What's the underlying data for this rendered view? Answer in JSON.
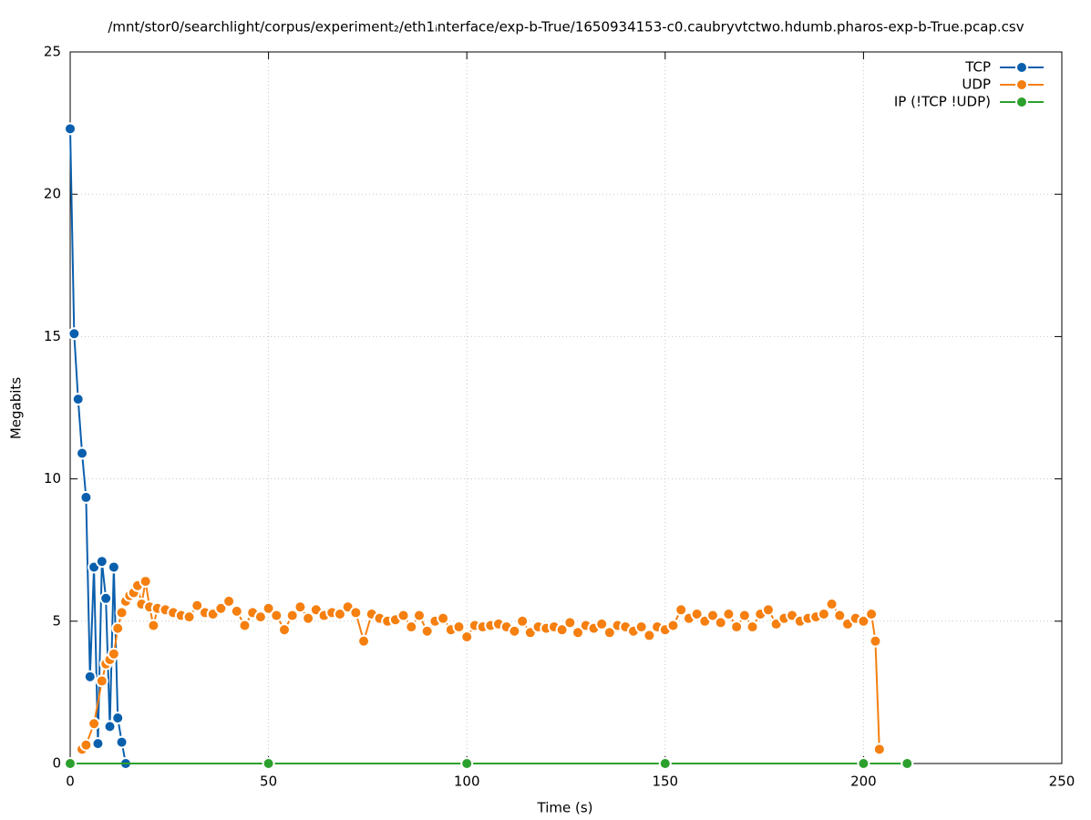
{
  "chart_data": {
    "type": "line",
    "title": "/mnt/stor0/searchlight/corpus/experiment₂/eth1ᵢnterface/exp-b-True/1650934153-c0.caubryvtctwo.hdumb.pharos-exp-b-True.pcap.csv",
    "x_label": "Time (s)",
    "y_label": "Megabits",
    "xlim": [
      0,
      250
    ],
    "xticks": [
      0,
      50,
      100,
      150,
      200,
      250
    ],
    "ylim": [
      0,
      25
    ],
    "yticks": [
      0,
      5,
      10,
      15,
      20,
      25
    ],
    "grid": true,
    "legend": "top-right",
    "series": [
      {
        "name": "TCP",
        "color": "#0a5fad",
        "x": [
          0,
          1,
          2,
          3,
          4,
          5,
          6,
          7,
          8,
          9,
          10,
          11,
          12,
          13,
          14
        ],
        "values": [
          22.3,
          15.1,
          12.8,
          10.9,
          9.35,
          3.05,
          6.9,
          0.7,
          7.1,
          5.8,
          1.3,
          6.9,
          1.6,
          0.75,
          0
        ]
      },
      {
        "name": "UDP",
        "color": "#f57f0f",
        "x": [
          3,
          4,
          6,
          8,
          9,
          10,
          11,
          12,
          13,
          14,
          15,
          16,
          17,
          18,
          19,
          20,
          21,
          22,
          24,
          26,
          28,
          30,
          32,
          34,
          36,
          38,
          40,
          42,
          44,
          46,
          48,
          50,
          52,
          54,
          56,
          58,
          60,
          62,
          64,
          66,
          68,
          70,
          72,
          74,
          76,
          78,
          80,
          82,
          84,
          86,
          88,
          90,
          92,
          94,
          96,
          98,
          100,
          102,
          104,
          106,
          108,
          110,
          112,
          114,
          116,
          118,
          120,
          122,
          124,
          126,
          128,
          130,
          132,
          134,
          136,
          138,
          140,
          142,
          144,
          146,
          148,
          150,
          152,
          154,
          156,
          158,
          160,
          162,
          164,
          166,
          168,
          170,
          172,
          174,
          176,
          178,
          180,
          182,
          184,
          186,
          188,
          190,
          192,
          194,
          196,
          198,
          200,
          202,
          203,
          204
        ],
        "values": [
          0.5,
          0.65,
          1.4,
          2.9,
          3.5,
          3.65,
          3.85,
          4.75,
          5.3,
          5.7,
          5.9,
          6.0,
          6.25,
          5.6,
          6.4,
          5.5,
          4.85,
          5.45,
          5.4,
          5.3,
          5.2,
          5.15,
          5.55,
          5.3,
          5.25,
          5.45,
          5.7,
          5.35,
          4.85,
          5.3,
          5.15,
          5.45,
          5.2,
          4.7,
          5.2,
          5.5,
          5.1,
          5.4,
          5.2,
          5.3,
          5.25,
          5.5,
          5.3,
          4.3,
          5.25,
          5.1,
          5.0,
          5.05,
          5.2,
          4.8,
          5.2,
          4.65,
          5.0,
          5.1,
          4.7,
          4.8,
          4.45,
          4.85,
          4.8,
          4.85,
          4.9,
          4.8,
          4.65,
          5.0,
          4.6,
          4.8,
          4.75,
          4.8,
          4.7,
          4.95,
          4.6,
          4.85,
          4.75,
          4.9,
          4.6,
          4.85,
          4.8,
          4.65,
          4.8,
          4.5,
          4.8,
          4.7,
          4.85,
          5.4,
          5.1,
          5.25,
          5.0,
          5.2,
          4.95,
          5.25,
          4.8,
          5.2,
          4.8,
          5.25,
          5.4,
          4.9,
          5.1,
          5.2,
          5.0,
          5.1,
          5.15,
          5.25,
          5.6,
          5.2,
          4.9,
          5.1,
          5.0,
          5.25,
          4.3,
          0.5
        ]
      },
      {
        "name": "IP (!TCP  !UDP)",
        "color": "#2ca02c",
        "x": [
          0,
          50,
          100,
          150,
          200,
          211
        ],
        "values": [
          0,
          0,
          0,
          0,
          0,
          0
        ]
      }
    ]
  }
}
